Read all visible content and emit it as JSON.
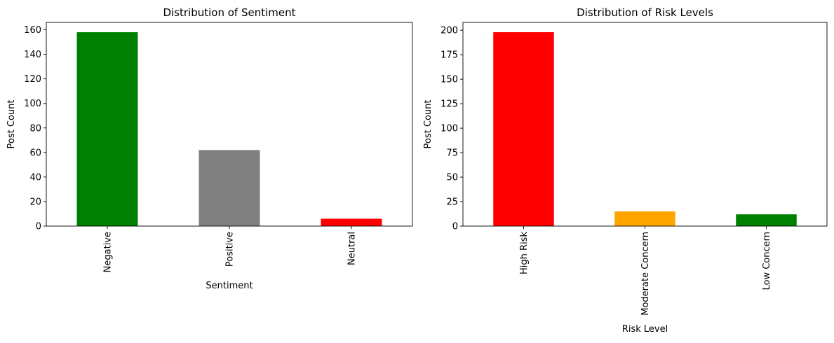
{
  "chart_data": [
    {
      "type": "bar",
      "title": "Distribution of Sentiment",
      "xlabel": "Sentiment",
      "ylabel": "Post Count",
      "categories": [
        "Negative",
        "Positive",
        "Neutral"
      ],
      "values": [
        158,
        62,
        6
      ],
      "colors": [
        "#008000",
        "#808080",
        "#ff0000"
      ],
      "ylim": [
        0,
        166
      ],
      "yticks": [
        0,
        20,
        40,
        60,
        80,
        100,
        120,
        140,
        160
      ],
      "grid": false
    },
    {
      "type": "bar",
      "title": "Distribution of Risk Levels",
      "xlabel": "Risk Level",
      "ylabel": "Post Count",
      "categories": [
        "High Risk",
        "Moderate Concern",
        "Low Concern"
      ],
      "values": [
        198,
        15,
        12
      ],
      "colors": [
        "#ff0000",
        "#ffa500",
        "#008000"
      ],
      "ylim": [
        0,
        208
      ],
      "yticks": [
        0,
        25,
        50,
        75,
        100,
        125,
        150,
        175,
        200
      ],
      "grid": false
    }
  ]
}
